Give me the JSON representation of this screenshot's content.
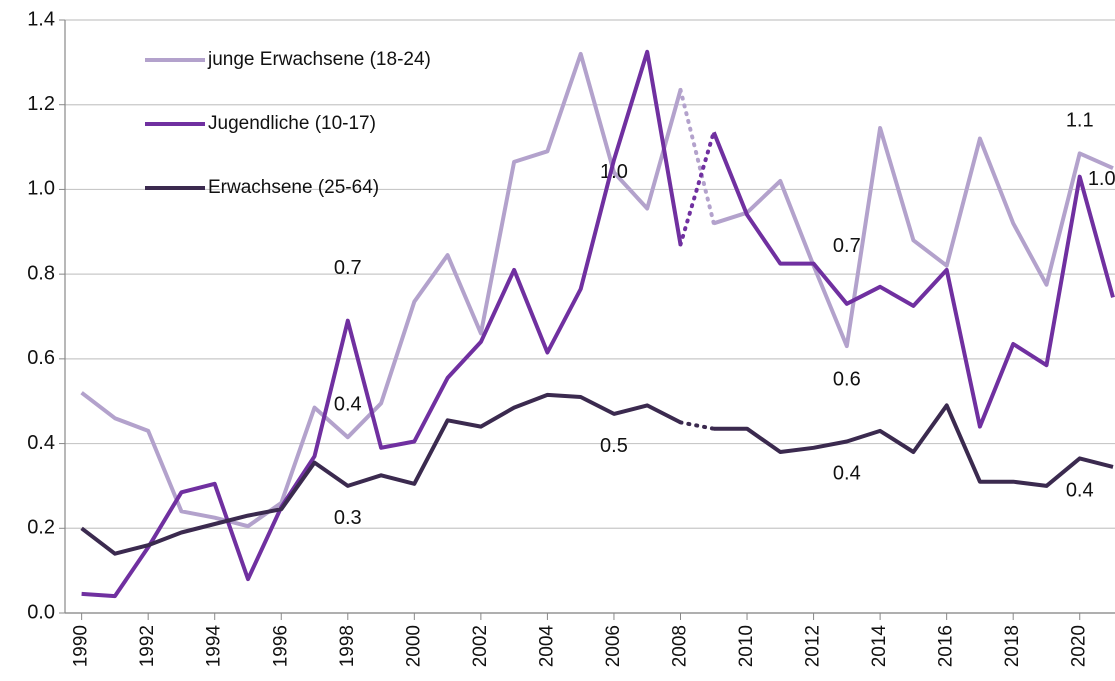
{
  "chart_data": {
    "type": "line",
    "x": [
      1990,
      1991,
      1992,
      1993,
      1994,
      1995,
      1996,
      1997,
      1998,
      1999,
      2000,
      2001,
      2002,
      2003,
      2004,
      2005,
      2006,
      2007,
      2008,
      2009,
      2010,
      2011,
      2012,
      2013,
      2014,
      2015,
      2016,
      2017,
      2018,
      2019,
      2020,
      2021
    ],
    "series": [
      {
        "name": "junge Erwachsene (18-24)",
        "color": "#b3a2cc",
        "values": [
          0.52,
          0.46,
          0.43,
          0.24,
          0.225,
          0.205,
          0.26,
          0.485,
          0.415,
          0.495,
          0.735,
          0.845,
          0.66,
          1.065,
          1.09,
          1.32,
          1.04,
          0.955,
          1.235,
          0.92,
          0.945,
          1.02,
          0.82,
          0.63,
          1.145,
          0.88,
          0.82,
          1.12,
          0.92,
          0.775,
          1.085,
          1.05
        ],
        "value_labels": [
          null,
          null,
          null,
          null,
          null,
          null,
          null,
          null,
          "0.4",
          null,
          null,
          null,
          null,
          null,
          null,
          null,
          "1.0",
          null,
          null,
          null,
          null,
          null,
          null,
          "0.6",
          null,
          null,
          null,
          null,
          null,
          null,
          "1.1",
          null
        ]
      },
      {
        "name": "Jugendliche (10-17)",
        "color": "#7030a0",
        "values": [
          0.045,
          0.04,
          0.155,
          0.285,
          0.305,
          0.08,
          0.25,
          0.37,
          0.69,
          0.39,
          0.405,
          0.555,
          0.64,
          0.81,
          0.615,
          0.765,
          1.07,
          1.325,
          0.87,
          1.135,
          0.94,
          0.825,
          0.825,
          0.73,
          0.77,
          0.725,
          0.81,
          0.44,
          0.635,
          0.585,
          1.03,
          0.745
        ],
        "value_labels": [
          null,
          null,
          null,
          null,
          null,
          null,
          null,
          null,
          "0.7",
          null,
          null,
          null,
          null,
          null,
          null,
          null,
          null,
          null,
          null,
          null,
          null,
          null,
          null,
          "0.7",
          null,
          null,
          null,
          null,
          null,
          null,
          "1.0",
          null
        ]
      },
      {
        "name": "Erwachsene (25-64)",
        "color": "#3b2a4f",
        "values": [
          0.2,
          0.14,
          0.16,
          0.19,
          0.21,
          0.23,
          0.245,
          0.355,
          0.3,
          0.325,
          0.305,
          0.455,
          0.44,
          0.485,
          0.515,
          0.51,
          0.47,
          0.49,
          0.45,
          0.435,
          0.435,
          0.38,
          0.39,
          0.405,
          0.43,
          0.38,
          0.49,
          0.31,
          0.31,
          0.3,
          0.365,
          0.345
        ],
        "value_labels": [
          null,
          null,
          null,
          null,
          null,
          null,
          null,
          null,
          "0.3",
          null,
          null,
          null,
          null,
          null,
          null,
          null,
          "0.5",
          null,
          null,
          null,
          null,
          null,
          null,
          "0.4",
          null,
          null,
          null,
          null,
          null,
          null,
          "0.4",
          null
        ]
      }
    ],
    "dotted_segment": [
      2008,
      2009
    ],
    "xlim": [
      1989.5,
      2021
    ],
    "xticks": [
      1990,
      1992,
      1994,
      1996,
      1998,
      2000,
      2002,
      2004,
      2006,
      2008,
      2010,
      2012,
      2014,
      2016,
      2018,
      2020
    ],
    "ylim": [
      0,
      1.4
    ],
    "yticks": [
      {
        "value": 0,
        "label": "0.0"
      },
      0.2,
      0.4,
      0.6,
      0.8,
      {
        "value": 1,
        "label": "1.0"
      },
      1.2,
      1.4
    ],
    "grid": true,
    "legend": "upper left"
  }
}
